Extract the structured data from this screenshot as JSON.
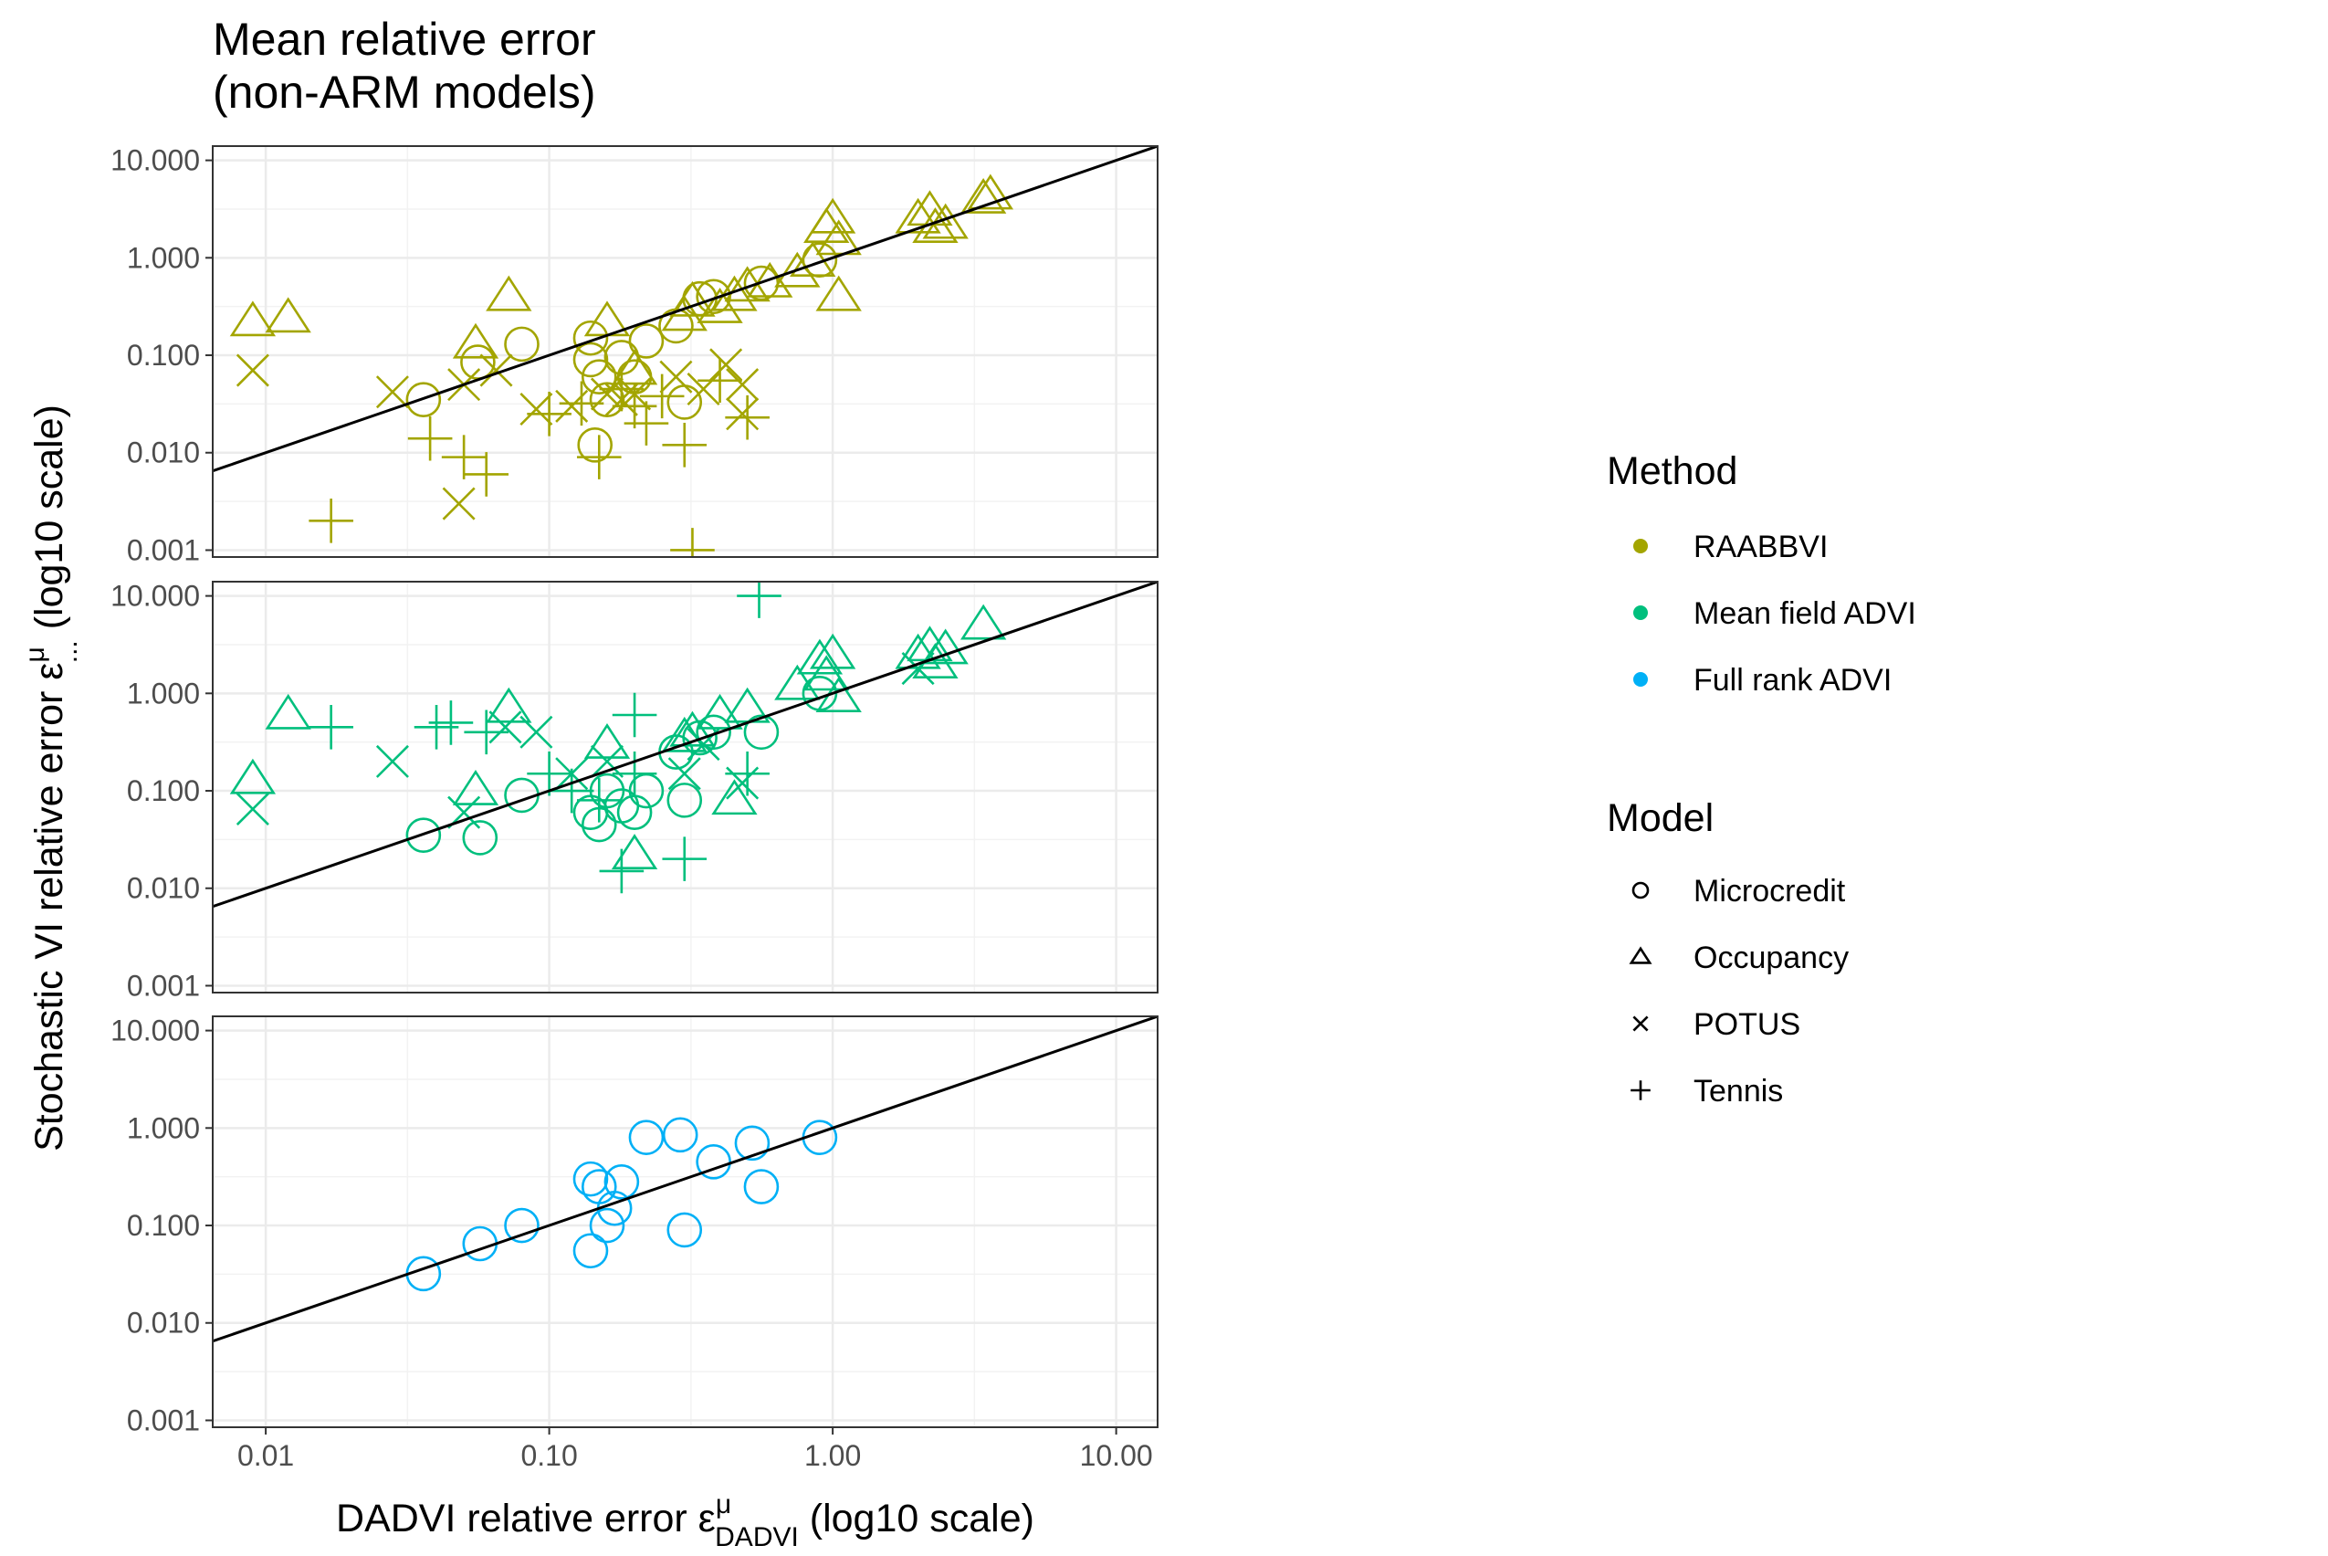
{
  "chart_data": {
    "type": "scatter",
    "title": [
      "Mean relative error",
      "(non-ARM models)"
    ],
    "xlabel": {
      "main": "DADVI relative error ε",
      "sup": "μ",
      "sub": "DADVI",
      "suffix": " (log10 scale)"
    },
    "ylabel": {
      "main": "Stochastic VI relative error ε",
      "sup": "μ",
      "sub": "...",
      "suffix": " (log10 scale)"
    },
    "x_scale": "log10",
    "y_scale": "log10",
    "xlim": [
      0.0065,
      14
    ],
    "ylim": [
      0.00085,
      14
    ],
    "x_ticks": [
      0.01,
      0.1,
      1,
      10
    ],
    "x_tick_labels": [
      "0.01",
      "0.10",
      "1.00",
      "10.00"
    ],
    "y_ticks": [
      0.001,
      0.01,
      0.1,
      1,
      10
    ],
    "y_tick_labels": [
      "0.001",
      "0.010",
      "0.100",
      "1.000",
      "10.000"
    ],
    "reference_line": {
      "type": "y=x",
      "color": "#000000"
    },
    "grid": true,
    "legend": {
      "position": "right",
      "method": {
        "title": "Method",
        "entries": [
          {
            "label": "RAABBVI",
            "color": "#A3A500"
          },
          {
            "label": "Mean field ADVI",
            "color": "#00BF7D"
          },
          {
            "label": "Full rank ADVI",
            "color": "#00B0F6"
          }
        ]
      },
      "model": {
        "title": "Model",
        "entries": [
          {
            "label": "Microcredit",
            "shape": "circle"
          },
          {
            "label": "Occupancy",
            "shape": "triangle"
          },
          {
            "label": "POTUS",
            "shape": "x"
          },
          {
            "label": "Tennis",
            "shape": "plus"
          }
        ]
      }
    },
    "panels": [
      {
        "method": "RAABBVI",
        "color": "#A3A500",
        "points": {
          "Microcredit": [
            [
              0.036,
              0.035
            ],
            [
              0.056,
              0.085
            ],
            [
              0.08,
              0.13
            ],
            [
              0.14,
              0.15
            ],
            [
              0.14,
              0.09
            ],
            [
              0.15,
              0.06
            ],
            [
              0.16,
              0.035
            ],
            [
              0.18,
              0.095
            ],
            [
              0.2,
              0.06
            ],
            [
              0.145,
              0.012
            ],
            [
              0.3,
              0.033
            ],
            [
              0.28,
              0.2
            ],
            [
              0.34,
              0.38
            ],
            [
              0.38,
              0.4
            ],
            [
              0.56,
              0.55
            ],
            [
              0.9,
              0.95
            ],
            [
              0.22,
              0.14
            ]
          ],
          "Occupancy": [
            [
              0.009,
              0.22
            ],
            [
              0.012,
              0.24
            ],
            [
              0.055,
              0.13
            ],
            [
              0.072,
              0.4
            ],
            [
              0.16,
              0.22
            ],
            [
              0.2,
              0.07
            ],
            [
              0.3,
              0.25
            ],
            [
              0.32,
              0.35
            ],
            [
              0.4,
              0.3
            ],
            [
              0.45,
              0.4
            ],
            [
              0.5,
              0.5
            ],
            [
              0.6,
              0.55
            ],
            [
              0.75,
              0.7
            ],
            [
              0.85,
              0.9
            ],
            [
              0.95,
              2.0
            ],
            [
              1.0,
              2.5
            ],
            [
              1.05,
              1.5
            ],
            [
              1.05,
              0.4
            ],
            [
              2.0,
              2.5
            ],
            [
              2.2,
              3.0
            ],
            [
              2.3,
              2.0
            ],
            [
              2.5,
              2.2
            ],
            [
              3.4,
              4.0
            ],
            [
              3.6,
              4.4
            ]
          ],
          "POTUS": [
            [
              0.009,
              0.07
            ],
            [
              0.028,
              0.042
            ],
            [
              0.048,
              0.003
            ],
            [
              0.05,
              0.05
            ],
            [
              0.065,
              0.07
            ],
            [
              0.09,
              0.028
            ],
            [
              0.12,
              0.03
            ],
            [
              0.16,
              0.04
            ],
            [
              0.18,
              0.035
            ],
            [
              0.2,
              0.04
            ],
            [
              0.28,
              0.06
            ],
            [
              0.35,
              0.045
            ],
            [
              0.42,
              0.08
            ],
            [
              0.48,
              0.05
            ],
            [
              0.48,
              0.025
            ]
          ],
          "Tennis": [
            [
              0.017,
              0.002
            ],
            [
              0.038,
              0.014
            ],
            [
              0.05,
              0.009
            ],
            [
              0.06,
              0.006
            ],
            [
              0.1,
              0.025
            ],
            [
              0.13,
              0.032
            ],
            [
              0.15,
              0.009
            ],
            [
              0.18,
              0.045
            ],
            [
              0.2,
              0.03
            ],
            [
              0.25,
              0.038
            ],
            [
              0.3,
              0.012
            ],
            [
              0.32,
              0.001
            ],
            [
              0.4,
              0.055
            ],
            [
              0.5,
              0.023
            ],
            [
              0.22,
              0.02
            ]
          ]
        }
      },
      {
        "method": "Mean field ADVI",
        "color": "#00BF7D",
        "points": {
          "Microcredit": [
            [
              0.036,
              0.035
            ],
            [
              0.057,
              0.033
            ],
            [
              0.08,
              0.09
            ],
            [
              0.14,
              0.06
            ],
            [
              0.15,
              0.045
            ],
            [
              0.16,
              0.1
            ],
            [
              0.18,
              0.07
            ],
            [
              0.22,
              0.1
            ],
            [
              0.28,
              0.25
            ],
            [
              0.3,
              0.08
            ],
            [
              0.34,
              0.35
            ],
            [
              0.38,
              0.4
            ],
            [
              0.56,
              0.4
            ],
            [
              0.9,
              1.0
            ],
            [
              0.2,
              0.06
            ]
          ],
          "Occupancy": [
            [
              0.009,
              0.13
            ],
            [
              0.012,
              0.6
            ],
            [
              0.055,
              0.1
            ],
            [
              0.072,
              0.7
            ],
            [
              0.16,
              0.3
            ],
            [
              0.2,
              0.022
            ],
            [
              0.3,
              0.35
            ],
            [
              0.32,
              0.4
            ],
            [
              0.4,
              0.6
            ],
            [
              0.45,
              0.08
            ],
            [
              0.5,
              0.7
            ],
            [
              0.75,
              1.2
            ],
            [
              0.9,
              2.2
            ],
            [
              1.0,
              2.5
            ],
            [
              1.05,
              0.9
            ],
            [
              0.95,
              1.5
            ],
            [
              2.0,
              2.5
            ],
            [
              2.2,
              3.0
            ],
            [
              2.3,
              2.0
            ],
            [
              2.5,
              2.8
            ],
            [
              3.4,
              5.0
            ]
          ],
          "POTUS": [
            [
              0.009,
              0.065
            ],
            [
              0.028,
              0.2
            ],
            [
              0.05,
              0.06
            ],
            [
              0.07,
              0.45
            ],
            [
              0.09,
              0.4
            ],
            [
              0.12,
              0.15
            ],
            [
              0.16,
              0.2
            ],
            [
              0.3,
              0.15
            ],
            [
              0.35,
              0.3
            ],
            [
              0.48,
              0.12
            ],
            [
              2.0,
              1.8
            ]
          ],
          "Tennis": [
            [
              0.017,
              0.45
            ],
            [
              0.04,
              0.45
            ],
            [
              0.045,
              0.5
            ],
            [
              0.06,
              0.4
            ],
            [
              0.1,
              0.15
            ],
            [
              0.12,
              0.1
            ],
            [
              0.15,
              0.08
            ],
            [
              0.2,
              0.6
            ],
            [
              0.2,
              0.15
            ],
            [
              0.3,
              0.02
            ],
            [
              0.5,
              0.15
            ],
            [
              0.55,
              10.0
            ],
            [
              0.18,
              0.015
            ]
          ]
        }
      },
      {
        "method": "Full rank ADVI",
        "color": "#00B0F6",
        "points": {
          "Microcredit": [
            [
              0.036,
              0.032
            ],
            [
              0.057,
              0.065
            ],
            [
              0.08,
              0.1
            ],
            [
              0.14,
              0.055
            ],
            [
              0.14,
              0.3
            ],
            [
              0.15,
              0.25
            ],
            [
              0.16,
              0.1
            ],
            [
              0.17,
              0.15
            ],
            [
              0.18,
              0.28
            ],
            [
              0.22,
              0.8
            ],
            [
              0.29,
              0.85
            ],
            [
              0.3,
              0.09
            ],
            [
              0.38,
              0.45
            ],
            [
              0.52,
              0.7
            ],
            [
              0.56,
              0.25
            ],
            [
              0.9,
              0.8
            ]
          ]
        }
      }
    ]
  }
}
